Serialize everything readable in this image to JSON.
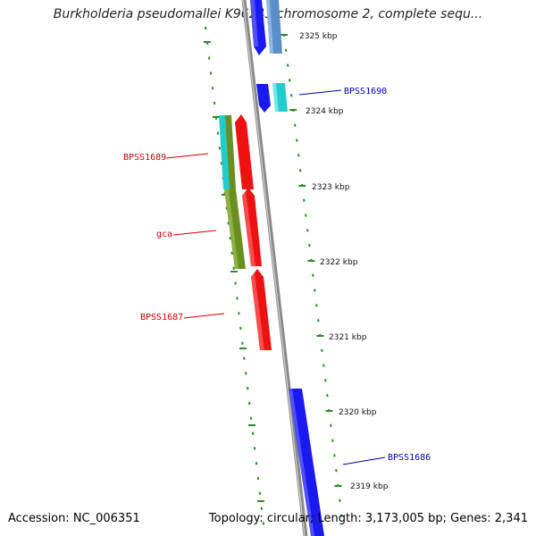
{
  "title": "Burkholderia pseudomallei K96243 chromosome 2, complete sequ...",
  "footer": {
    "accession": "Accession: NC_006351",
    "topology": "Topology: circular; Length: 3,173,005 bp; Genes: 2,341"
  },
  "kbp_labels": [
    "2325 kbp",
    "2324 kbp",
    "2323 kbp",
    "2322 kbp",
    "2321 kbp",
    "2320 kbp",
    "2319 kbp"
  ],
  "gene_labels": {
    "bpss1690": "BPSS1690",
    "bpss1689": "BPSS1689",
    "gca": "gca",
    "bpss1687": "BPSS1687",
    "bpss1686": "BPSS1686"
  },
  "colors": {
    "forward_gene": "#1a1aee",
    "forward_gene_light": "#5b8fc9",
    "cyan_feature": "#22cccc",
    "reverse_gene": "#ee1111",
    "olive_feature": "#6b8e23",
    "backbone": "#8a8a8a",
    "tick": "#2a8a2a",
    "label_blue": "#0000aa",
    "label_red": "#cc0000"
  }
}
